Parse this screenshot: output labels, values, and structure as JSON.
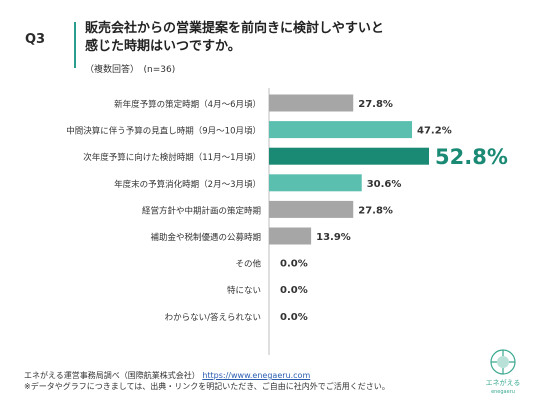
{
  "question": "Q3",
  "title_line1": "販売会社からの営業提案を前向きに検討しやすいと",
  "title_line2": "感じた時期はいつですか。",
  "subtitle": "（複数回答）　(n=36)",
  "footer": {
    "source": "エネがえる運営事務局調べ（国際航業株式会社）",
    "url": "https://www.enegaeru.com",
    "note": "※データやグラフにつきましては、出典・リンクを明記いただき、ご自由に社内外でご活用ください。"
  },
  "logo_text": "エネがえる",
  "logo_sub": "enegaeru",
  "colors": {
    "gray": "#a6a6a6",
    "teal": "#5bbfb0",
    "dark_teal": "#1a8a74",
    "axis": "#bfbfbf",
    "logo": "#3aa88f"
  },
  "chart_data": {
    "type": "bar",
    "orientation": "horizontal",
    "categories": [
      "新年度予算の策定時期（4月～6月頃）",
      "中間決算に伴う予算の見直し時期（9月～10月頃）",
      "次年度予算に向けた検討時期（11月～1月頃）",
      "年度末の予算消化時期（2月～3月頃）",
      "経営方針や中期計画の策定時期",
      "補助金や税制優遇の公募時期",
      "その他",
      "特にない",
      "わからない/答えられない"
    ],
    "values": [
      27.8,
      47.2,
      52.8,
      30.6,
      27.8,
      13.9,
      0.0,
      0.0,
      0.0
    ],
    "value_labels": [
      "27.8%",
      "47.2%",
      "52.8%",
      "30.6%",
      "27.8%",
      "13.9%",
      "0.0%",
      "0.0%",
      "0.0%"
    ],
    "bar_colors": [
      "gray",
      "teal",
      "dark_teal",
      "teal",
      "gray",
      "gray",
      "gray",
      "gray",
      "gray"
    ],
    "highlight_index": 2,
    "xlim": [
      0,
      60
    ]
  }
}
